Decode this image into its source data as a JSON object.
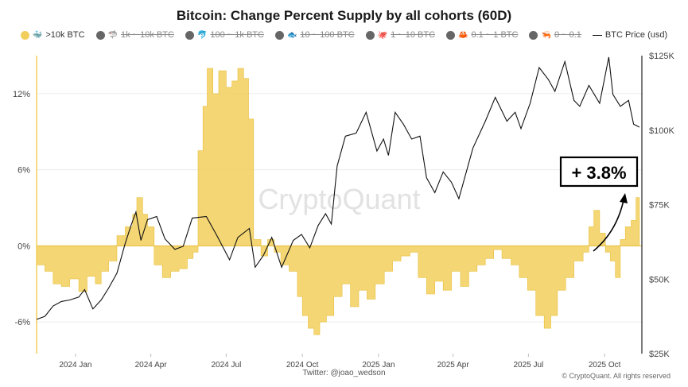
{
  "chart_data": {
    "type": "area+line",
    "title": "Bitcoin: Change Percent Supply by all cohorts (60D)",
    "legend": [
      {
        "label": ">10k BTC",
        "icon": "whale-icon",
        "glyph": "🐳",
        "color": "#F2CF5C",
        "active": true
      },
      {
        "label": "1k ~ 10k BTC",
        "icon": "shark-icon",
        "glyph": "🦈",
        "color": "#666666",
        "active": false
      },
      {
        "label": "100 ~ 1k BTC",
        "icon": "dolphin-icon",
        "glyph": "🐬",
        "color": "#666666",
        "active": false
      },
      {
        "label": "10 ~ 100 BTC",
        "icon": "fish-icon",
        "glyph": "🐟",
        "color": "#666666",
        "active": false
      },
      {
        "label": "1 ~ 10 BTC",
        "icon": "octopus-icon",
        "glyph": "🐙",
        "color": "#666666",
        "active": false
      },
      {
        "label": "0.1 ~ 1 BTC",
        "icon": "crab-icon",
        "glyph": "🦀",
        "color": "#666666",
        "active": false
      },
      {
        "label": "0 ~ 0.1",
        "icon": "shrimp-icon",
        "glyph": "🦐",
        "color": "#666666",
        "active": false
      },
      {
        "label": "BTC Price (usd)",
        "icon": "line-icon",
        "glyph": "",
        "color": "#111111",
        "active": true
      }
    ],
    "x_axis": {
      "start": "2023-11-15",
      "end": "2025-11-15",
      "ticks": [
        {
          "date": "2024-01-01",
          "label": "2024 Jan"
        },
        {
          "date": "2024-04-01",
          "label": "2024 Apr"
        },
        {
          "date": "2024-07-01",
          "label": "2024 Jul"
        },
        {
          "date": "2024-10-01",
          "label": "2024 Oct"
        },
        {
          "date": "2025-01-01",
          "label": "2025 Jan"
        },
        {
          "date": "2025-04-01",
          "label": "2025 Apr"
        },
        {
          "date": "2025-07-01",
          "label": "2025 Jul"
        },
        {
          "date": "2025-10-01",
          "label": "2025 Oct"
        }
      ]
    },
    "y_left": {
      "range": [
        -8.5,
        15
      ],
      "ticks": [
        12,
        6,
        0,
        -6
      ],
      "tick_labels": [
        "12%",
        "6%",
        "0%",
        "-6%"
      ]
    },
    "y_right": {
      "range": [
        25000,
        125000
      ],
      "ticks": [
        125000,
        100000,
        75000,
        50000,
        25000
      ],
      "tick_labels": [
        "$125K",
        "$100K",
        "$75K",
        "$50K",
        "$25K"
      ]
    },
    "series": [
      {
        "name": ">10k BTC",
        "axis": "left",
        "color": "#F2CF5C",
        "points": [
          [
            "2023-11-15",
            -1.5
          ],
          [
            "2023-11-25",
            -2.0
          ],
          [
            "2023-12-05",
            -3.0
          ],
          [
            "2023-12-15",
            -3.2
          ],
          [
            "2023-12-25",
            -2.6
          ],
          [
            "2024-01-05",
            -3.6
          ],
          [
            "2024-01-15",
            -2.4
          ],
          [
            "2024-01-25",
            -3.0
          ],
          [
            "2024-02-01",
            -2.0
          ],
          [
            "2024-02-10",
            -1.2
          ],
          [
            "2024-02-20",
            0.8
          ],
          [
            "2024-03-01",
            1.5
          ],
          [
            "2024-03-10",
            2.5
          ],
          [
            "2024-03-15",
            3.8
          ],
          [
            "2024-03-22",
            2.5
          ],
          [
            "2024-03-28",
            1.5
          ],
          [
            "2024-04-05",
            -1.5
          ],
          [
            "2024-04-15",
            -2.5
          ],
          [
            "2024-04-25",
            -2.0
          ],
          [
            "2024-05-05",
            -1.8
          ],
          [
            "2024-05-15",
            -1.0
          ],
          [
            "2024-05-22",
            -0.5
          ],
          [
            "2024-05-28",
            7.5
          ],
          [
            "2024-06-03",
            11.0
          ],
          [
            "2024-06-08",
            14.0
          ],
          [
            "2024-06-15",
            12.0
          ],
          [
            "2024-06-22",
            13.8
          ],
          [
            "2024-07-01",
            12.5
          ],
          [
            "2024-07-08",
            13.0
          ],
          [
            "2024-07-15",
            14.0
          ],
          [
            "2024-07-22",
            13.2
          ],
          [
            "2024-07-28",
            10.0
          ],
          [
            "2024-08-03",
            0.5
          ],
          [
            "2024-08-12",
            -0.8
          ],
          [
            "2024-08-20",
            0.5
          ],
          [
            "2024-08-28",
            -0.5
          ],
          [
            "2024-09-05",
            -1.5
          ],
          [
            "2024-09-15",
            -2.0
          ],
          [
            "2024-09-25",
            -4.0
          ],
          [
            "2024-10-01",
            -5.5
          ],
          [
            "2024-10-08",
            -6.5
          ],
          [
            "2024-10-15",
            -7.0
          ],
          [
            "2024-10-22",
            -6.0
          ],
          [
            "2024-10-30",
            -5.5
          ],
          [
            "2024-11-08",
            -4.0
          ],
          [
            "2024-11-18",
            -3.0
          ],
          [
            "2024-11-28",
            -4.8
          ],
          [
            "2024-12-08",
            -3.5
          ],
          [
            "2024-12-18",
            -4.2
          ],
          [
            "2024-12-28",
            -3.0
          ],
          [
            "2025-01-08",
            -2.0
          ],
          [
            "2025-01-18",
            -1.2
          ],
          [
            "2025-01-28",
            -0.8
          ],
          [
            "2025-02-08",
            -0.5
          ],
          [
            "2025-02-18",
            -2.5
          ],
          [
            "2025-02-28",
            -3.8
          ],
          [
            "2025-03-10",
            -2.8
          ],
          [
            "2025-03-20",
            -3.5
          ],
          [
            "2025-03-30",
            -2.0
          ],
          [
            "2025-04-10",
            -3.2
          ],
          [
            "2025-04-20",
            -2.0
          ],
          [
            "2025-04-30",
            -1.5
          ],
          [
            "2025-05-10",
            -1.0
          ],
          [
            "2025-05-20",
            -0.3
          ],
          [
            "2025-05-30",
            -1.0
          ],
          [
            "2025-06-10",
            -1.5
          ],
          [
            "2025-06-20",
            -2.5
          ],
          [
            "2025-06-30",
            -3.5
          ],
          [
            "2025-07-10",
            -5.5
          ],
          [
            "2025-07-20",
            -6.5
          ],
          [
            "2025-07-28",
            -5.5
          ],
          [
            "2025-08-05",
            -3.5
          ],
          [
            "2025-08-15",
            -2.5
          ],
          [
            "2025-08-25",
            -1.2
          ],
          [
            "2025-09-05",
            -0.5
          ],
          [
            "2025-09-12",
            1.5
          ],
          [
            "2025-09-18",
            2.8
          ],
          [
            "2025-09-25",
            1.0
          ],
          [
            "2025-10-02",
            -0.5
          ],
          [
            "2025-10-08",
            -1.2
          ],
          [
            "2025-10-14",
            -2.5
          ],
          [
            "2025-10-20",
            0.5
          ],
          [
            "2025-10-26",
            1.5
          ],
          [
            "2025-11-02",
            2.0
          ],
          [
            "2025-11-08",
            3.8
          ],
          [
            "2025-11-12",
            3.8
          ]
        ]
      },
      {
        "name": "BTC Price (usd)",
        "axis": "right",
        "color": "#111111",
        "points": [
          [
            "2023-11-15",
            36500
          ],
          [
            "2023-11-25",
            37500
          ],
          [
            "2023-12-05",
            41000
          ],
          [
            "2023-12-15",
            42500
          ],
          [
            "2023-12-25",
            43000
          ],
          [
            "2024-01-05",
            44000
          ],
          [
            "2024-01-12",
            46500
          ],
          [
            "2024-01-22",
            40000
          ],
          [
            "2024-02-01",
            43000
          ],
          [
            "2024-02-10",
            47000
          ],
          [
            "2024-02-20",
            52000
          ],
          [
            "2024-03-01",
            62000
          ],
          [
            "2024-03-08",
            68000
          ],
          [
            "2024-03-14",
            72500
          ],
          [
            "2024-03-20",
            63000
          ],
          [
            "2024-03-28",
            70000
          ],
          [
            "2024-04-08",
            71000
          ],
          [
            "2024-04-18",
            63500
          ],
          [
            "2024-04-30",
            60000
          ],
          [
            "2024-05-10",
            61000
          ],
          [
            "2024-05-21",
            70500
          ],
          [
            "2024-06-07",
            71000
          ],
          [
            "2024-06-20",
            64500
          ],
          [
            "2024-07-05",
            56500
          ],
          [
            "2024-07-15",
            64000
          ],
          [
            "2024-07-29",
            67000
          ],
          [
            "2024-08-05",
            54000
          ],
          [
            "2024-08-15",
            58000
          ],
          [
            "2024-08-25",
            64000
          ],
          [
            "2024-09-06",
            54000
          ],
          [
            "2024-09-20",
            63000
          ],
          [
            "2024-09-30",
            65000
          ],
          [
            "2024-10-10",
            60500
          ],
          [
            "2024-10-20",
            68000
          ],
          [
            "2024-10-29",
            72000
          ],
          [
            "2024-11-05",
            68500
          ],
          [
            "2024-11-12",
            88000
          ],
          [
            "2024-11-22",
            98000
          ],
          [
            "2024-12-05",
            99000
          ],
          [
            "2024-12-17",
            106000
          ],
          [
            "2024-12-30",
            93000
          ],
          [
            "2025-01-07",
            97000
          ],
          [
            "2025-01-13",
            91500
          ],
          [
            "2025-01-21",
            106000
          ],
          [
            "2025-01-31",
            102000
          ],
          [
            "2025-02-10",
            97000
          ],
          [
            "2025-02-20",
            98000
          ],
          [
            "2025-02-28",
            84000
          ],
          [
            "2025-03-10",
            79000
          ],
          [
            "2025-03-20",
            86000
          ],
          [
            "2025-03-30",
            82500
          ],
          [
            "2025-04-08",
            77000
          ],
          [
            "2025-04-15",
            84000
          ],
          [
            "2025-04-25",
            94000
          ],
          [
            "2025-05-10",
            103000
          ],
          [
            "2025-05-22",
            111000
          ],
          [
            "2025-06-05",
            103000
          ],
          [
            "2025-06-15",
            106000
          ],
          [
            "2025-06-22",
            100500
          ],
          [
            "2025-07-03",
            109000
          ],
          [
            "2025-07-14",
            121000
          ],
          [
            "2025-07-25",
            117000
          ],
          [
            "2025-08-02",
            113000
          ],
          [
            "2025-08-14",
            123000
          ],
          [
            "2025-08-25",
            110000
          ],
          [
            "2025-09-01",
            108000
          ],
          [
            "2025-09-12",
            115000
          ],
          [
            "2025-09-25",
            109000
          ],
          [
            "2025-10-06",
            124500
          ],
          [
            "2025-10-11",
            112000
          ],
          [
            "2025-10-20",
            108000
          ],
          [
            "2025-10-30",
            110000
          ],
          [
            "2025-11-05",
            102000
          ],
          [
            "2025-11-12",
            101000
          ]
        ]
      }
    ],
    "annotation": {
      "text": "+ 3.8%",
      "arrow": "up-right"
    },
    "watermark": "CryptoQuant",
    "credit_left": "Twitter: @joao_wedson",
    "credit_right": "© CryptoQuant. All rights reserved"
  }
}
